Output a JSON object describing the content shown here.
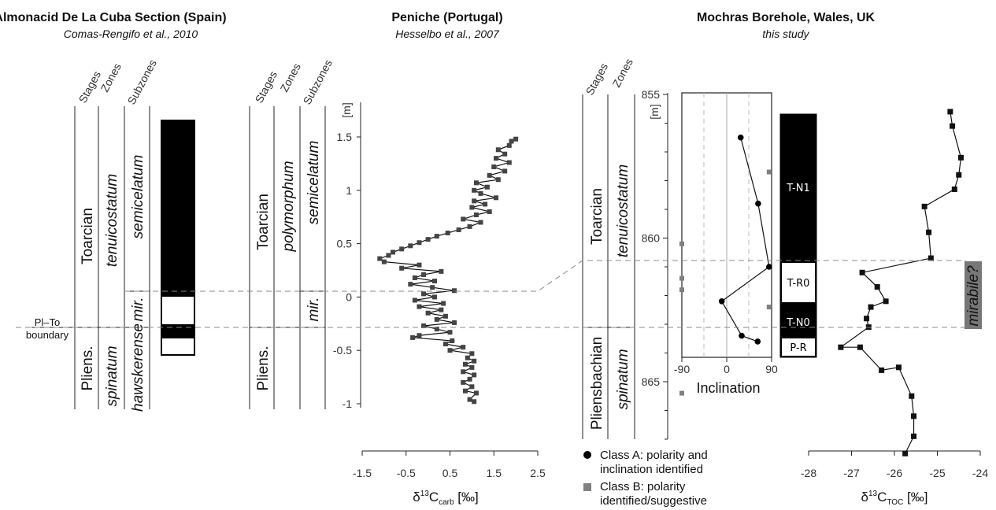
{
  "panels": {
    "almonacid": {
      "title": "Almonacid De La Cuba Section (Spain)",
      "citation": "Comas-Rengifo et al., 2010",
      "col_stages": "Stages",
      "col_zones": "Zones",
      "col_subzones": "Subzones",
      "stage_upper": "Toarcian",
      "stage_lower": "Pliens.",
      "zone_upper": "tenuicostatum",
      "zone_lower": "spinatum",
      "subzone_upper": "semicelatum",
      "subzone_mid": "mir.",
      "subzone_lower": "hawskerense",
      "boundary_label_1": "Pl–To",
      "boundary_label_2": "boundary"
    },
    "peniche": {
      "title": "Peniche (Portugal)",
      "citation": "Hesselbo et al., 2007",
      "col_stages": "Stages",
      "col_zones": "Zones",
      "col_subzones": "Subzones",
      "stage_upper": "Toarcian",
      "stage_lower": "Pliens.",
      "zone_upper": "polymorphum",
      "subzone_upper": "semicelatum",
      "subzone_mid": "mir.",
      "depth_unit": "[m]",
      "depth_ticks": [
        "1.5",
        "1",
        "0.5",
        "0",
        "-0.5",
        "-1"
      ],
      "xaxis_ticks": [
        "-1.5",
        "-0.5",
        "0.5",
        "1.5",
        "2.5"
      ],
      "xaxis_label_main": "δ",
      "xaxis_label_sup": "13",
      "xaxis_label_c": "C",
      "xaxis_label_sub": "carb",
      "xaxis_label_unit": " [‰]"
    },
    "mochras": {
      "title": "Mochras Borehole, Wales, UK",
      "citation": "this study",
      "col_stages": "Stages",
      "col_zones": "Zones",
      "stage_upper": "Toarcian",
      "stage_lower": "Pliensbachian",
      "zone_upper": "tenuicostatum",
      "zone_lower": "spinatum",
      "depth_unit": "[m]",
      "depth_ticks": [
        "855",
        "860",
        "865"
      ],
      "incl_ticks": [
        "-90",
        "0",
        "90"
      ],
      "incl_label": "Inclination",
      "polarity_labels": [
        "T-N1",
        "T-R0",
        "T-N0",
        "P-R"
      ],
      "mirabile_label": "mirabile?",
      "xaxis_ticks": [
        "-28",
        "-27",
        "-26",
        "-25",
        "-24"
      ],
      "xaxis_label_main": "δ",
      "xaxis_label_sup": "13",
      "xaxis_label_c": "C",
      "xaxis_label_sub": "TOC",
      "xaxis_label_unit": " [‰]"
    }
  },
  "legend": {
    "class_a_line1": "Class A: polarity and",
    "class_a_line2": "inclination identified",
    "class_b_line1": "Class B: polarity",
    "class_b_line2": "identified/suggestive",
    "class_a_color": "#000000",
    "class_b_color": "#808080"
  },
  "chart_data": [
    {
      "type": "line",
      "xlabel": "δ13Ccarb [‰]",
      "ylabel": "[m]",
      "xlim": [
        -1.5,
        2.5
      ],
      "ylim": [
        -1,
        1.5
      ],
      "series": [
        {
          "points": [
            [
              1.05,
              -0.98
            ],
            [
              0.95,
              -0.96
            ],
            [
              1.1,
              -0.9
            ],
            [
              0.85,
              -0.88
            ],
            [
              1.0,
              -0.84
            ],
            [
              0.8,
              -0.8
            ],
            [
              0.95,
              -0.77
            ],
            [
              1.05,
              -0.73
            ],
            [
              0.8,
              -0.7
            ],
            [
              1.0,
              -0.66
            ],
            [
              0.85,
              -0.63
            ],
            [
              1.05,
              -0.6
            ],
            [
              0.9,
              -0.57
            ],
            [
              1.0,
              -0.53
            ],
            [
              0.5,
              -0.5
            ],
            [
              0.8,
              -0.47
            ],
            [
              0.4,
              -0.44
            ],
            [
              0.55,
              -0.41
            ],
            [
              -0.35,
              -0.38
            ],
            [
              -0.2,
              -0.36
            ],
            [
              0.5,
              -0.33
            ],
            [
              0.2,
              -0.3
            ],
            [
              -0.1,
              -0.27
            ],
            [
              0.6,
              -0.24
            ],
            [
              0.2,
              -0.21
            ],
            [
              0.4,
              -0.18
            ],
            [
              0.0,
              -0.15
            ],
            [
              0.3,
              -0.12
            ],
            [
              -0.2,
              -0.09
            ],
            [
              0.35,
              -0.06
            ],
            [
              -0.3,
              -0.03
            ],
            [
              0.15,
              0.0
            ],
            [
              -0.1,
              0.03
            ],
            [
              0.6,
              0.06
            ],
            [
              0.1,
              0.09
            ],
            [
              -0.4,
              0.12
            ],
            [
              0.15,
              0.15
            ],
            [
              -0.3,
              0.18
            ],
            [
              -0.1,
              0.21
            ],
            [
              0.3,
              0.24
            ],
            [
              -0.6,
              0.27
            ],
            [
              -0.2,
              0.3
            ],
            [
              -1.0,
              0.33
            ],
            [
              -1.1,
              0.36
            ],
            [
              -0.9,
              0.39
            ],
            [
              -0.8,
              0.42
            ],
            [
              -0.6,
              0.45
            ],
            [
              -0.4,
              0.48
            ],
            [
              -0.2,
              0.51
            ],
            [
              0.0,
              0.54
            ],
            [
              0.2,
              0.57
            ],
            [
              0.45,
              0.6
            ],
            [
              0.7,
              0.63
            ],
            [
              0.95,
              0.66
            ],
            [
              1.2,
              0.7
            ],
            [
              0.8,
              0.73
            ],
            [
              1.1,
              0.77
            ],
            [
              1.4,
              0.8
            ],
            [
              1.0,
              0.84
            ],
            [
              1.3,
              0.87
            ],
            [
              1.05,
              0.9
            ],
            [
              1.55,
              0.93
            ],
            [
              1.2,
              0.97
            ],
            [
              1.05,
              1.0
            ],
            [
              1.35,
              1.03
            ],
            [
              1.1,
              1.07
            ],
            [
              1.6,
              1.1
            ],
            [
              1.4,
              1.14
            ],
            [
              1.75,
              1.18
            ],
            [
              1.5,
              1.22
            ],
            [
              1.85,
              1.26
            ],
            [
              1.55,
              1.3
            ],
            [
              1.75,
              1.34
            ],
            [
              1.6,
              1.38
            ],
            [
              1.85,
              1.42
            ],
            [
              1.9,
              1.46
            ],
            [
              2.0,
              1.48
            ]
          ]
        }
      ]
    },
    {
      "type": "scatter",
      "xlabel": "Inclination",
      "ylabel": "[m]",
      "xlim": [
        -90,
        90
      ],
      "ylim": [
        855,
        868
      ],
      "series": [
        {
          "name": "Class A: polarity and inclination identified",
          "points": [
            [
              28,
              856.5
            ],
            [
              63,
              858.8
            ],
            [
              85,
              861.0
            ],
            [
              -10,
              862.2
            ],
            [
              30,
              863.4
            ],
            [
              62,
              863.6
            ]
          ]
        },
        {
          "name": "Class B: polarity identified/suggestive",
          "points": [
            [
              85,
              857.7
            ],
            [
              -90,
              860.2
            ],
            [
              -90,
              861.4
            ],
            [
              -90,
              861.8
            ],
            [
              85,
              862.4
            ],
            [
              -90,
              865.4
            ]
          ]
        }
      ]
    },
    {
      "type": "line",
      "xlabel": "δ13CTOC [‰]",
      "ylabel": "[m]",
      "xlim": [
        -28,
        -24
      ],
      "ylim": [
        855,
        868
      ],
      "series": [
        {
          "points": [
            [
              -24.7,
              855.6
            ],
            [
              -24.65,
              856.1
            ],
            [
              -24.45,
              857.2
            ],
            [
              -24.5,
              857.8
            ],
            [
              -24.6,
              858.3
            ],
            [
              -25.3,
              858.9
            ],
            [
              -25.2,
              859.8
            ],
            [
              -25.15,
              860.7
            ],
            [
              -26.75,
              861.2
            ],
            [
              -26.4,
              861.7
            ],
            [
              -26.2,
              862.2
            ],
            [
              -26.55,
              862.4
            ],
            [
              -26.65,
              862.8
            ],
            [
              -26.6,
              863.1
            ],
            [
              -27.25,
              863.8
            ],
            [
              -26.8,
              863.8
            ],
            [
              -26.3,
              864.6
            ],
            [
              -25.9,
              864.5
            ],
            [
              -25.6,
              865.5
            ],
            [
              -25.55,
              866.2
            ],
            [
              -25.55,
              866.9
            ],
            [
              -25.75,
              867.5
            ]
          ]
        }
      ]
    }
  ]
}
